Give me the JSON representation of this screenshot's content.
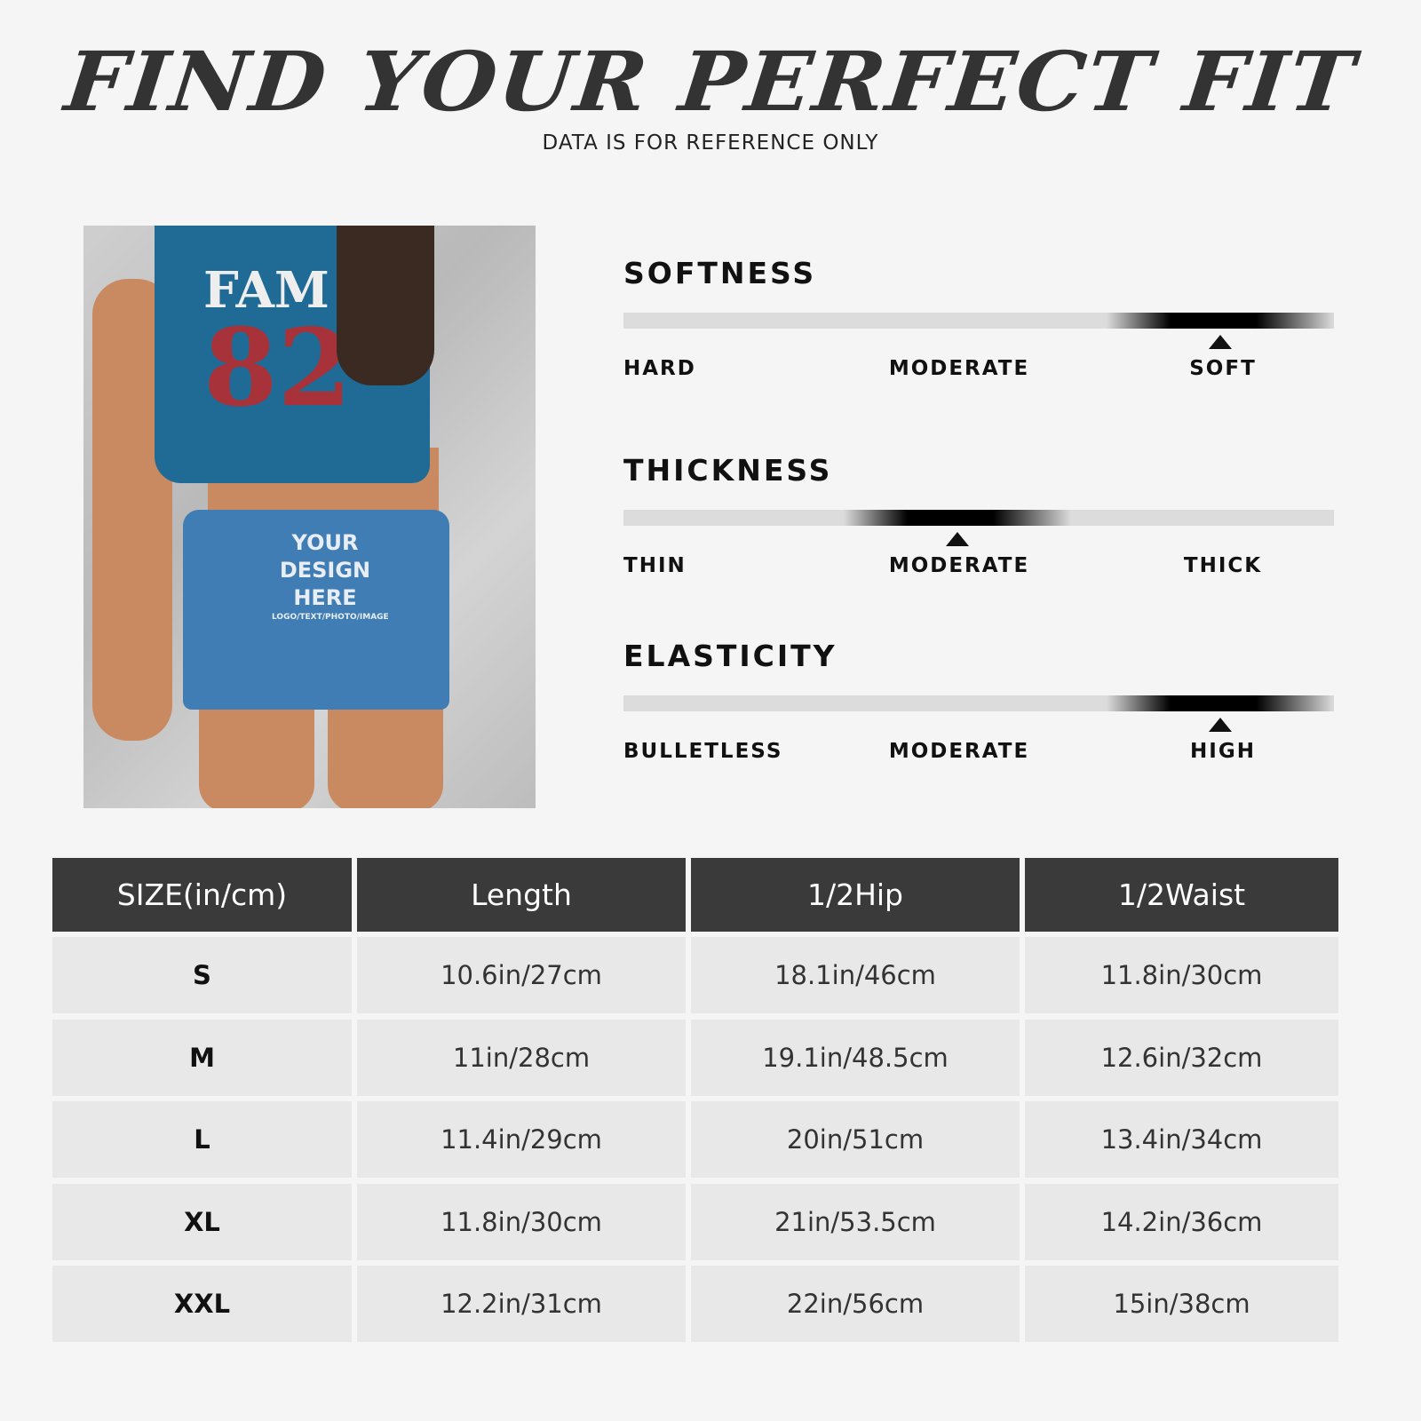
{
  "header": {
    "title": "FIND YOUR PERFECT FIT",
    "subtitle": "DATA IS FOR REFERENCE ONLY"
  },
  "photo": {
    "shirt_text": "FAM",
    "shirt_number": "82",
    "design_lines": [
      "YOUR",
      "DESIGN",
      "HERE"
    ],
    "design_sub": "LOGO/TEXT/PHOTO/IMAGE",
    "shorts_color": "#3f7db4",
    "shirt_color": "#1f6b96"
  },
  "scales": [
    {
      "title": "SOFTNESS",
      "labels": [
        "HARD",
        "MODERATE",
        "SOFT"
      ],
      "level": 0.84,
      "selected": "SOFT"
    },
    {
      "title": "THICKNESS",
      "labels": [
        "THIN",
        "MODERATE",
        "THICK"
      ],
      "level": 0.47,
      "selected": "MODERATE"
    },
    {
      "title": "ELASTICITY",
      "labels": [
        "BULLETLESS",
        "MODERATE",
        "HIGH"
      ],
      "level": 0.84,
      "selected": "HIGH"
    }
  ],
  "table": {
    "headers": [
      "SIZE(in/cm)",
      "Length",
      "1/2Hip",
      "1/2Waist"
    ],
    "rows": [
      [
        "S",
        "10.6in/27cm",
        "18.1in/46cm",
        "11.8in/30cm"
      ],
      [
        "M",
        "11in/28cm",
        "19.1in/48.5cm",
        "12.6in/32cm"
      ],
      [
        "L",
        "11.4in/29cm",
        "20in/51cm",
        "13.4in/34cm"
      ],
      [
        "XL",
        "11.8in/30cm",
        "21in/53.5cm",
        "14.2in/36cm"
      ],
      [
        "XXL",
        "12.2in/31cm",
        "22in/56cm",
        "15in/38cm"
      ]
    ],
    "header_color": "#3a3a3a",
    "row_color": "#e8e8e8"
  }
}
